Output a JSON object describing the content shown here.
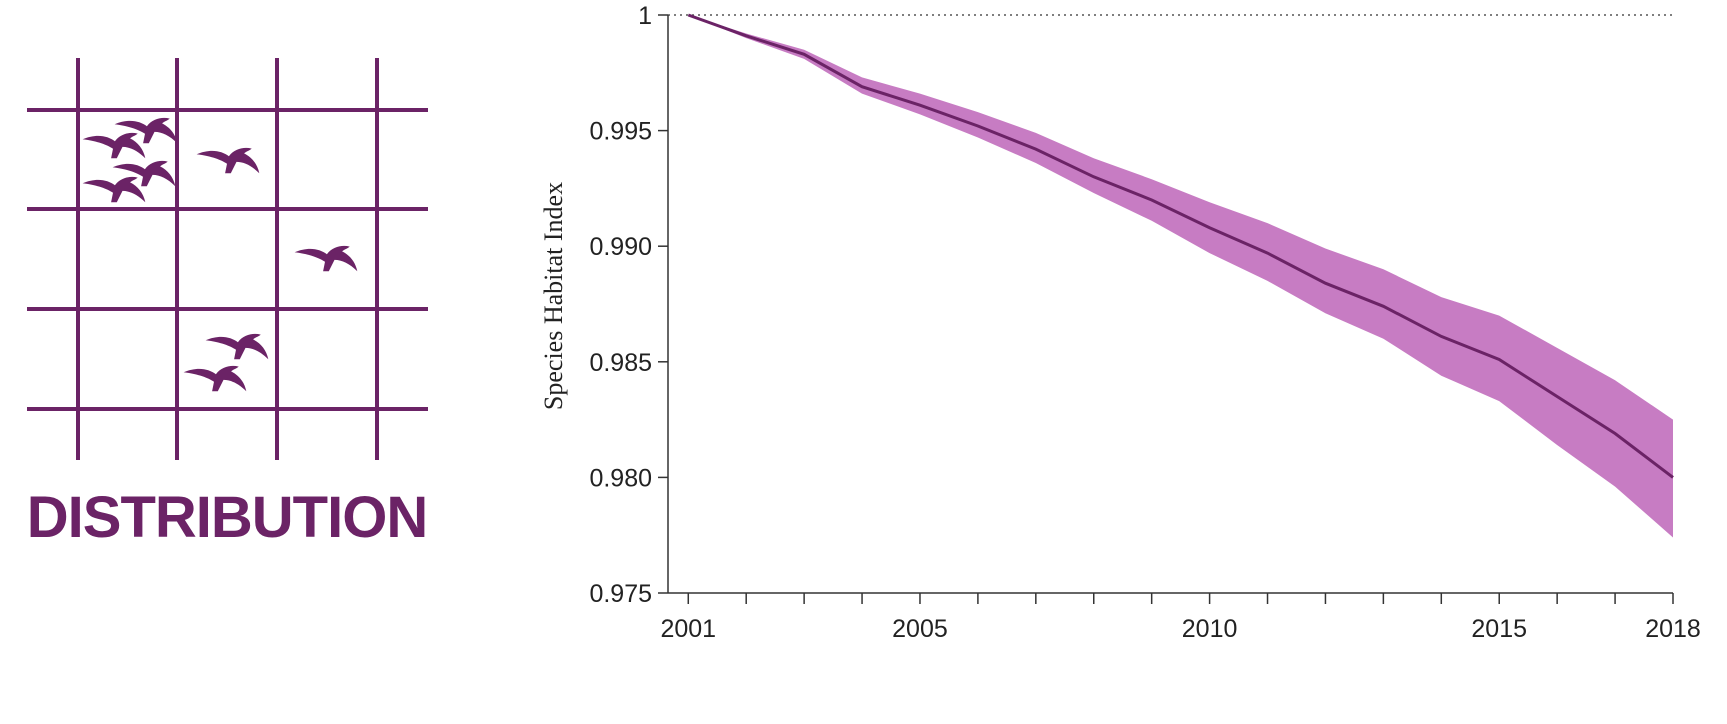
{
  "panel": {
    "label": "DISTRIBUTION",
    "icon": "bird-distribution-grid-icon"
  },
  "colors": {
    "primary": "#6b2366",
    "band": "#c77cc3",
    "axis": "#333333",
    "text": "#222222"
  },
  "chart_data": {
    "type": "line",
    "title": "",
    "xlabel": "",
    "ylabel": "Species Habitat Index",
    "x": [
      2001,
      2002,
      2003,
      2004,
      2005,
      2006,
      2007,
      2008,
      2009,
      2010,
      2011,
      2012,
      2013,
      2014,
      2015,
      2016,
      2017,
      2018
    ],
    "series": [
      {
        "values": [
          1.0,
          0.9991,
          0.9983,
          0.9969,
          0.9961,
          0.9952,
          0.9942,
          0.993,
          0.992,
          0.9908,
          0.9897,
          0.9884,
          0.9874,
          0.9861,
          0.9851,
          0.9835,
          0.9819,
          0.98
        ],
        "lower": [
          1.0,
          0.999,
          0.9981,
          0.9966,
          0.9957,
          0.9947,
          0.9936,
          0.9923,
          0.9911,
          0.9897,
          0.9885,
          0.9871,
          0.986,
          0.9844,
          0.9833,
          0.9814,
          0.9796,
          0.9774
        ],
        "upper": [
          1.0,
          0.9992,
          0.9985,
          0.9973,
          0.9966,
          0.9958,
          0.9949,
          0.9938,
          0.9929,
          0.9919,
          0.991,
          0.9899,
          0.989,
          0.9878,
          0.987,
          0.9856,
          0.9842,
          0.9825
        ]
      }
    ],
    "xlim": [
      2000.65,
      2018
    ],
    "ylim": [
      0.975,
      1.0
    ],
    "yticks": [
      {
        "value": 1.0,
        "label": "1"
      },
      {
        "value": 0.995,
        "label": "0.995"
      },
      {
        "value": 0.99,
        "label": "0.990"
      },
      {
        "value": 0.985,
        "label": "0.985"
      },
      {
        "value": 0.98,
        "label": "0.980"
      },
      {
        "value": 0.975,
        "label": "0.975"
      }
    ],
    "xticks_labeled": [
      {
        "value": 2001,
        "label": "2001"
      },
      {
        "value": 2005,
        "label": "2005"
      },
      {
        "value": 2010,
        "label": "2010"
      },
      {
        "value": 2015,
        "label": "2015"
      },
      {
        "value": 2018,
        "label": "2018"
      }
    ],
    "reference_line": 1.0,
    "grid": false
  }
}
